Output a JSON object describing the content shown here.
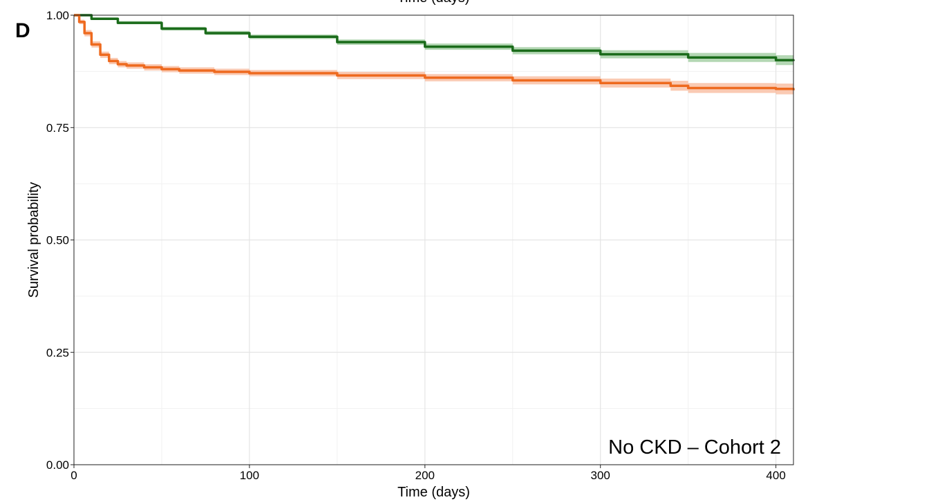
{
  "panel_label": "D",
  "top_cropped_text": "Time (days)",
  "chart_data": {
    "type": "line",
    "xlabel": "Time (days)",
    "ylabel": "Survival probability",
    "xlim": [
      0,
      410
    ],
    "ylim": [
      0,
      1
    ],
    "x_ticks": [
      0,
      100,
      200,
      300,
      400
    ],
    "x_tick_labels": [
      "0",
      "100",
      "200",
      "300",
      "400"
    ],
    "y_ticks": [
      0,
      0.25,
      0.5,
      0.75,
      1
    ],
    "y_tick_labels": [
      "0.00",
      "0.25",
      "0.50",
      "0.75",
      "1.00"
    ],
    "grid": true,
    "annotation": "No CKD – Cohort 2",
    "series": [
      {
        "color": "#1a6b1a",
        "band_color": "#9bc99b",
        "x": [
          0,
          10,
          25,
          50,
          75,
          100,
          150,
          200,
          250,
          300,
          350,
          400,
          410
        ],
        "y": [
          1.0,
          0.992,
          0.983,
          0.97,
          0.96,
          0.952,
          0.94,
          0.93,
          0.921,
          0.913,
          0.906,
          0.9,
          0.898
        ],
        "lower": [
          1.0,
          0.99,
          0.98,
          0.966,
          0.956,
          0.947,
          0.934,
          0.923,
          0.913,
          0.904,
          0.896,
          0.889,
          0.887
        ],
        "upper": [
          1.0,
          0.995,
          0.987,
          0.974,
          0.965,
          0.957,
          0.946,
          0.937,
          0.929,
          0.922,
          0.916,
          0.911,
          0.909
        ]
      },
      {
        "color": "#ee6a1f",
        "band_color": "#f8b89a",
        "x": [
          0,
          3,
          6,
          10,
          15,
          20,
          25,
          30,
          40,
          50,
          60,
          80,
          100,
          150,
          200,
          250,
          300,
          340,
          350,
          400,
          410
        ],
        "y": [
          1.0,
          0.985,
          0.96,
          0.935,
          0.912,
          0.898,
          0.891,
          0.888,
          0.884,
          0.88,
          0.877,
          0.874,
          0.871,
          0.866,
          0.861,
          0.855,
          0.849,
          0.843,
          0.838,
          0.836,
          0.833
        ],
        "lower": [
          1.0,
          0.98,
          0.953,
          0.928,
          0.905,
          0.891,
          0.884,
          0.881,
          0.877,
          0.873,
          0.87,
          0.867,
          0.864,
          0.858,
          0.853,
          0.846,
          0.839,
          0.832,
          0.827,
          0.824,
          0.821
        ],
        "upper": [
          1.0,
          0.99,
          0.967,
          0.942,
          0.919,
          0.905,
          0.898,
          0.895,
          0.891,
          0.887,
          0.884,
          0.881,
          0.878,
          0.874,
          0.869,
          0.864,
          0.859,
          0.854,
          0.849,
          0.848,
          0.845
        ]
      }
    ]
  }
}
